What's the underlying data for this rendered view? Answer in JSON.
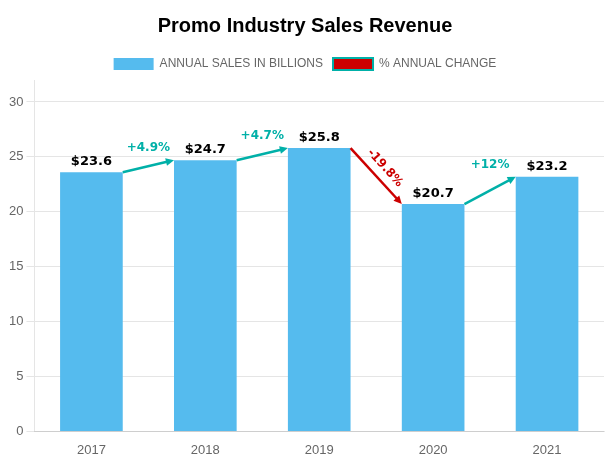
{
  "chart_data": {
    "type": "bar",
    "title": "Promo Industry Sales Revenue",
    "categories": [
      "2017",
      "2018",
      "2019",
      "2020",
      "2021"
    ],
    "series": [
      {
        "name": "ANNUAL SALES IN BILLIONS",
        "type": "bar",
        "color": "#55bbee",
        "values": [
          23.6,
          24.7,
          25.8,
          20.7,
          23.2
        ],
        "value_labels": [
          "$23.6",
          "$24.7",
          "$25.8",
          "$20.7",
          "$23.2"
        ]
      },
      {
        "name": "% ANNUAL CHANGE",
        "type": "arrow",
        "colors": [
          "#00b0a8",
          "#00b0a8",
          "#cc0000",
          "#00b0a8"
        ],
        "annotations": [
          "+4.9%",
          "+4.7%",
          "-19.8%",
          "+12%"
        ]
      }
    ],
    "ylim": [
      0,
      32
    ],
    "yticks": [
      0,
      5,
      10,
      15,
      20,
      25,
      30
    ],
    "grid": true,
    "legend": "top",
    "data_labels": true
  }
}
